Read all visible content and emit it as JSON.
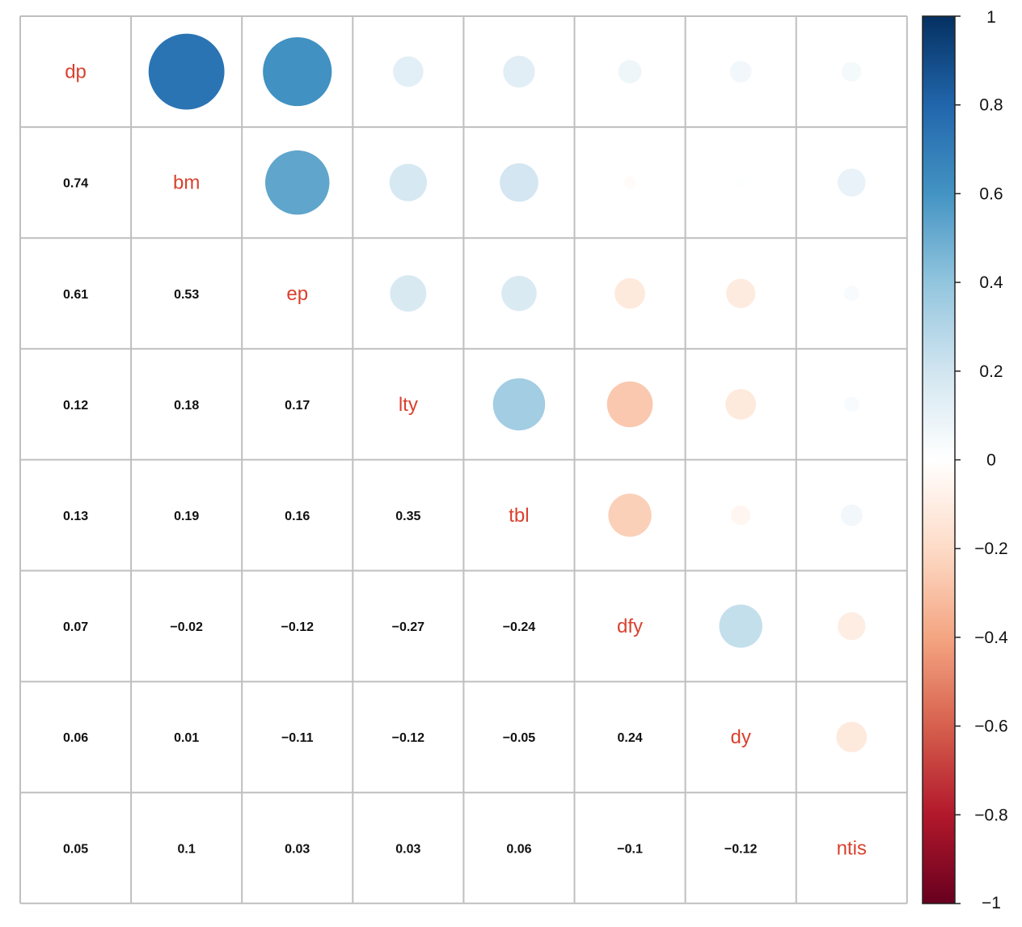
{
  "chart_data": {
    "type": "heatmap",
    "variables": [
      "dp",
      "bm",
      "ep",
      "lty",
      "tbl",
      "dfy",
      "dy",
      "ntis"
    ],
    "matrix": [
      [
        1,
        0.74,
        0.61,
        0.12,
        0.13,
        0.07,
        0.06,
        0.05
      ],
      [
        0.74,
        1,
        0.53,
        0.18,
        0.19,
        -0.02,
        0.01,
        0.1
      ],
      [
        0.61,
        0.53,
        1,
        0.17,
        0.16,
        -0.12,
        -0.11,
        0.03
      ],
      [
        0.12,
        0.18,
        0.17,
        1,
        0.35,
        -0.27,
        -0.12,
        0.03
      ],
      [
        0.13,
        0.19,
        0.16,
        0.35,
        1,
        -0.24,
        -0.05,
        0.06
      ],
      [
        0.07,
        -0.02,
        -0.12,
        -0.27,
        -0.24,
        1,
        0.24,
        -0.1
      ],
      [
        0.06,
        0.01,
        -0.11,
        -0.12,
        -0.05,
        0.24,
        1,
        -0.12
      ],
      [
        0.05,
        0.1,
        0.03,
        0.03,
        0.06,
        -0.1,
        -0.12,
        1
      ]
    ],
    "lower_labels": [
      [
        "0.74"
      ],
      [
        "0.61",
        "0.53"
      ],
      [
        "0.12",
        "0.18",
        "0.17"
      ],
      [
        "0.13",
        "0.19",
        "0.16",
        "0.35"
      ],
      [
        "0.07",
        "−0.02",
        "−0.12",
        "−0.27",
        "−0.24"
      ],
      [
        "0.06",
        "0.01",
        "−0.11",
        "−0.12",
        "−0.05",
        "0.24"
      ],
      [
        "0.05",
        "0.1",
        "0.03",
        "0.03",
        "0.06",
        "−0.1",
        "−0.12"
      ]
    ],
    "upper_display": "circle",
    "lower_display": "number",
    "diagonal_display": "variable-name",
    "colorbar": {
      "range": [
        -1,
        1
      ],
      "ticks": [
        1,
        0.8,
        0.6,
        0.4,
        0.2,
        0,
        -0.2,
        -0.4,
        -0.6,
        -0.8,
        -1
      ],
      "tick_labels": [
        "1",
        "0.8",
        "0.6",
        "0.4",
        "0.2",
        "0",
        "−0.2",
        "−0.4",
        "−0.6",
        "−0.8",
        "−1"
      ],
      "placement": "right"
    },
    "colors": {
      "positive_end": "#053061",
      "negative_end": "#67001F",
      "midpoint": "#FFFFFF",
      "diagonal_label": "#D9412E",
      "grid": "#BFBFBF"
    },
    "palette": [
      "#67001F",
      "#B2182B",
      "#D6604D",
      "#F4A582",
      "#FDDBC7",
      "#FFFFFF",
      "#D1E5F0",
      "#92C5DE",
      "#4393C3",
      "#2166AC",
      "#053061"
    ]
  }
}
